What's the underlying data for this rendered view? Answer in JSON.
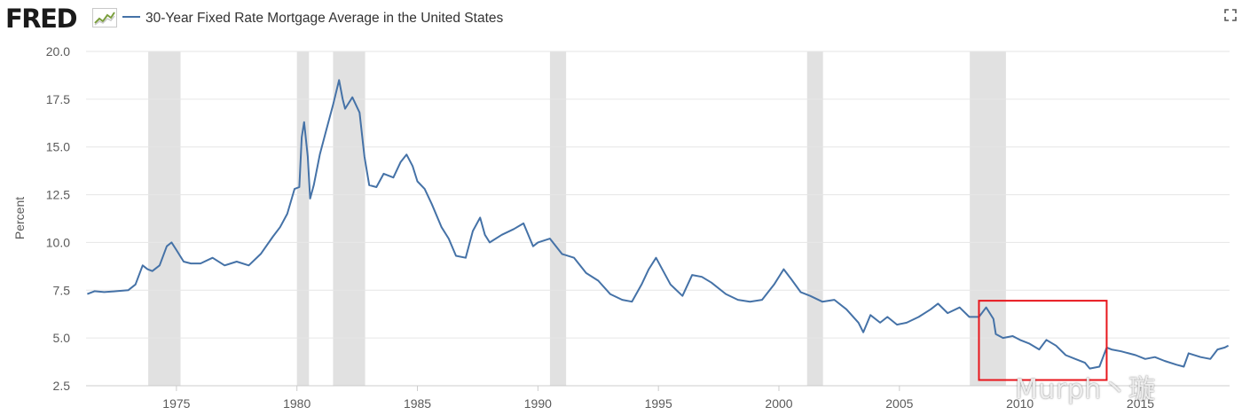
{
  "header": {
    "logo_text": "FRED",
    "legend_label": "30-Year Fixed Rate Mortgage Average in the United States",
    "fullscreen_icon": "expand-icon"
  },
  "watermark": "Murph丶璇",
  "colors": {
    "series": "#4572a7",
    "recession": "#e1e1e1",
    "highlight_box": "#e8161c",
    "grid": "#e6e6e6"
  },
  "chart_data": {
    "type": "line",
    "title": "30-Year Fixed Rate Mortgage Average in the United States",
    "xlabel": "",
    "ylabel": "Percent",
    "xlim": [
      1971.25,
      2018.7
    ],
    "ylim": [
      2.5,
      20.0
    ],
    "yticks": [
      "2.5",
      "5.0",
      "7.5",
      "10.0",
      "12.5",
      "15.0",
      "17.5",
      "20.0"
    ],
    "xticks": [
      "1975",
      "1980",
      "1985",
      "1990",
      "1995",
      "2000",
      "2005",
      "2010",
      "2015"
    ],
    "grid": "horizontal",
    "recessions": [
      [
        1973.83,
        1975.17
      ],
      [
        1980.0,
        1980.5
      ],
      [
        1981.5,
        1982.83
      ],
      [
        1990.5,
        1991.17
      ],
      [
        2001.17,
        2001.83
      ],
      [
        2007.92,
        2009.42
      ]
    ],
    "highlight_range": {
      "x": [
        2008.3,
        2013.6
      ],
      "y": [
        2.8,
        6.95
      ]
    },
    "series": [
      {
        "name": "30-Year Fixed Rate Mortgage Average in the United States",
        "x": [
          1971.3,
          1971.6,
          1972.0,
          1972.5,
          1973.0,
          1973.3,
          1973.6,
          1973.8,
          1974.0,
          1974.3,
          1974.6,
          1974.8,
          1975.0,
          1975.3,
          1975.6,
          1976.0,
          1976.5,
          1977.0,
          1977.5,
          1978.0,
          1978.5,
          1979.0,
          1979.3,
          1979.6,
          1979.9,
          1980.1,
          1980.2,
          1980.3,
          1980.45,
          1980.55,
          1980.7,
          1980.95,
          1981.2,
          1981.5,
          1981.75,
          1981.9,
          1982.0,
          1982.3,
          1982.6,
          1982.8,
          1983.0,
          1983.3,
          1983.6,
          1984.0,
          1984.3,
          1984.55,
          1984.8,
          1985.0,
          1985.3,
          1985.6,
          1986.0,
          1986.3,
          1986.6,
          1987.0,
          1987.3,
          1987.6,
          1987.8,
          1988.0,
          1988.5,
          1989.0,
          1989.4,
          1989.8,
          1990.0,
          1990.5,
          1991.0,
          1991.5,
          1992.0,
          1992.5,
          1993.0,
          1993.5,
          1993.9,
          1994.3,
          1994.6,
          1994.9,
          1995.2,
          1995.5,
          1996.0,
          1996.4,
          1996.8,
          1997.2,
          1997.8,
          1998.3,
          1998.8,
          1999.3,
          1999.8,
          2000.2,
          2000.5,
          2000.9,
          2001.3,
          2001.8,
          2002.3,
          2002.8,
          2003.3,
          2003.5,
          2003.8,
          2004.2,
          2004.5,
          2004.9,
          2005.3,
          2005.8,
          2006.3,
          2006.6,
          2007.0,
          2007.5,
          2007.9,
          2008.3,
          2008.6,
          2008.9,
          2009.0,
          2009.3,
          2009.7,
          2010.0,
          2010.4,
          2010.8,
          2011.1,
          2011.5,
          2011.9,
          2012.3,
          2012.7,
          2012.9,
          2013.3,
          2013.6,
          2013.8,
          2014.2,
          2014.8,
          2015.2,
          2015.6,
          2016.0,
          2016.5,
          2016.8,
          2017.0,
          2017.5,
          2017.9,
          2018.2,
          2018.5,
          2018.65
        ],
        "values": [
          7.3,
          7.45,
          7.4,
          7.45,
          7.5,
          7.8,
          8.8,
          8.6,
          8.5,
          8.8,
          9.8,
          10.0,
          9.6,
          9.0,
          8.9,
          8.9,
          9.2,
          8.8,
          9.0,
          8.8,
          9.4,
          10.3,
          10.8,
          11.5,
          12.8,
          12.9,
          15.5,
          16.3,
          14.5,
          12.3,
          13.0,
          14.6,
          15.8,
          17.2,
          18.5,
          17.5,
          17.0,
          17.6,
          16.8,
          14.5,
          13.0,
          12.9,
          13.6,
          13.4,
          14.2,
          14.6,
          14.0,
          13.2,
          12.8,
          12.0,
          10.8,
          10.2,
          9.3,
          9.2,
          10.6,
          11.3,
          10.4,
          10.0,
          10.4,
          10.7,
          11.0,
          9.8,
          10.0,
          10.2,
          9.4,
          9.2,
          8.4,
          8.0,
          7.3,
          7.0,
          6.9,
          7.8,
          8.6,
          9.2,
          8.5,
          7.8,
          7.2,
          8.3,
          8.2,
          7.9,
          7.3,
          7.0,
          6.9,
          7.0,
          7.8,
          8.6,
          8.1,
          7.4,
          7.2,
          6.9,
          7.0,
          6.5,
          5.8,
          5.3,
          6.2,
          5.8,
          6.1,
          5.7,
          5.8,
          6.1,
          6.5,
          6.8,
          6.3,
          6.6,
          6.1,
          6.1,
          6.6,
          6.0,
          5.2,
          5.0,
          5.1,
          4.9,
          4.7,
          4.4,
          4.9,
          4.6,
          4.1,
          3.9,
          3.7,
          3.4,
          3.5,
          4.5,
          4.4,
          4.3,
          4.1,
          3.9,
          4.0,
          3.8,
          3.6,
          3.5,
          4.2,
          4.0,
          3.9,
          4.4,
          4.5,
          4.6
        ]
      }
    ]
  }
}
